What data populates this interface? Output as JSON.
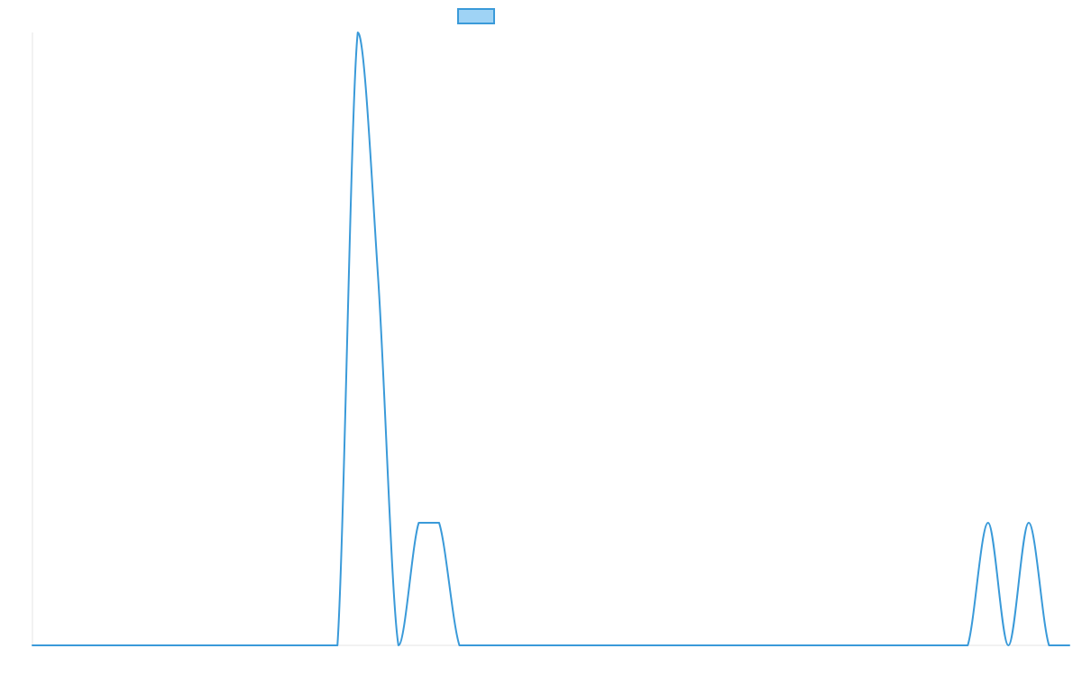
{
  "chart_data": {
    "type": "line",
    "title": "",
    "xlabel": "",
    "ylabel": "",
    "grid": false,
    "legend": {
      "placement": "top-center",
      "swatch_only": true
    },
    "colors": {
      "line": "#3a9ad9",
      "legend_fill": "#9fd3f5",
      "axis": "#e6e6e6"
    },
    "xlim": [
      0,
      51
    ],
    "ylim": [
      0,
      30
    ],
    "series": [
      {
        "x": [
          0,
          1,
          2,
          3,
          4,
          5,
          6,
          7,
          8,
          9,
          10,
          11,
          12,
          13,
          14,
          15,
          16,
          17,
          18,
          19,
          20,
          21,
          22,
          23,
          24,
          25,
          26,
          27,
          28,
          29,
          30,
          31,
          32,
          33,
          34,
          35,
          36,
          37,
          38,
          39,
          40,
          41,
          42,
          43,
          44,
          45,
          46,
          47,
          48,
          49,
          50,
          51
        ],
        "y": [
          0,
          0,
          0,
          0,
          0,
          0,
          0,
          0,
          0,
          0,
          0,
          0,
          0,
          0,
          0,
          0,
          30,
          18,
          0,
          6,
          6,
          0,
          0,
          0,
          0,
          0,
          0,
          0,
          0,
          0,
          0,
          0,
          0,
          0,
          0,
          0,
          0,
          0,
          0,
          0,
          0,
          0,
          0,
          0,
          0,
          0,
          0,
          6,
          0,
          6,
          0,
          0
        ]
      }
    ]
  }
}
